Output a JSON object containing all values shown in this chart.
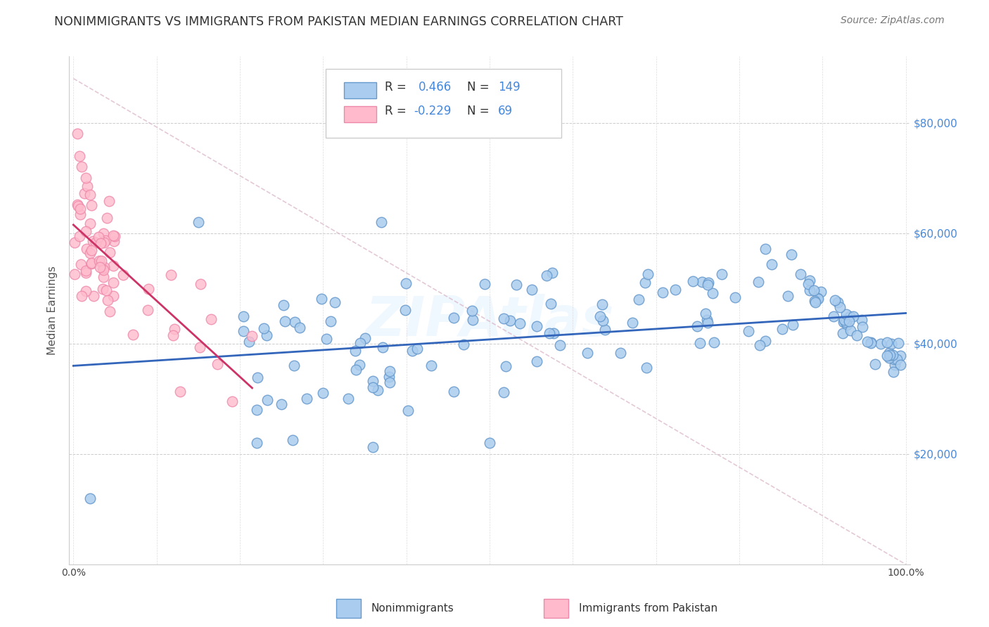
{
  "title": "NONIMMIGRANTS VS IMMIGRANTS FROM PAKISTAN MEDIAN EARNINGS CORRELATION CHART",
  "source": "Source: ZipAtlas.com",
  "ylabel": "Median Earnings",
  "blue_color": "#6699CC",
  "blue_fill": "#AACCEE",
  "pink_color": "#EE88AA",
  "pink_fill": "#FFBBCC",
  "trend_blue": "#3366BB",
  "trend_pink": "#CC3366",
  "diagonal_color": "#DDBBCC",
  "watermark": "ZIPAtlas",
  "background_color": "#FFFFFF",
  "legend_text1": "R =  0.466   N = 149",
  "legend_text2": "R = -0.229   N =  69",
  "bottom_label1": "Nonimmigrants",
  "bottom_label2": "Immigrants from Pakistan"
}
